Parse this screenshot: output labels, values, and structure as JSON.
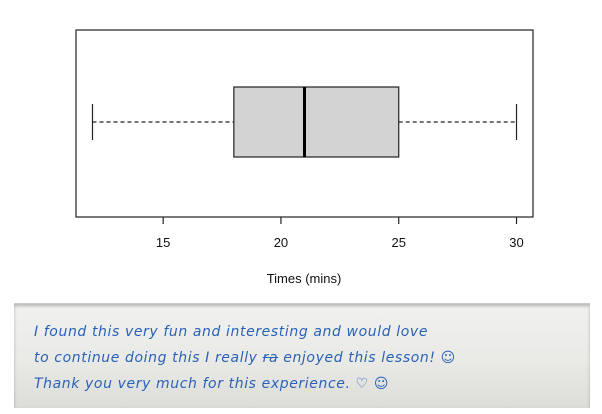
{
  "chart_data": {
    "type": "boxplot",
    "orientation": "horizontal",
    "xlabel": "Times (mins)",
    "xlim": [
      11.3,
      30.7
    ],
    "xticks": [
      15,
      20,
      25,
      30
    ],
    "whisker_low": 12,
    "q1": 18,
    "median": 21,
    "q3": 25,
    "whisker_high": 30,
    "box_fill": "#d3d3d3",
    "grid": false
  },
  "note": {
    "line1": "I found this very fun and interesting and would love",
    "line2_a": "to continue doing this I really",
    "line2_strike": "ra",
    "line2_b": "enjoyed this lesson!",
    "line2_emoji": "☺",
    "line3": "Thank you very much for this experience.",
    "line3_heart": "♡",
    "line3_smile": "☺"
  }
}
